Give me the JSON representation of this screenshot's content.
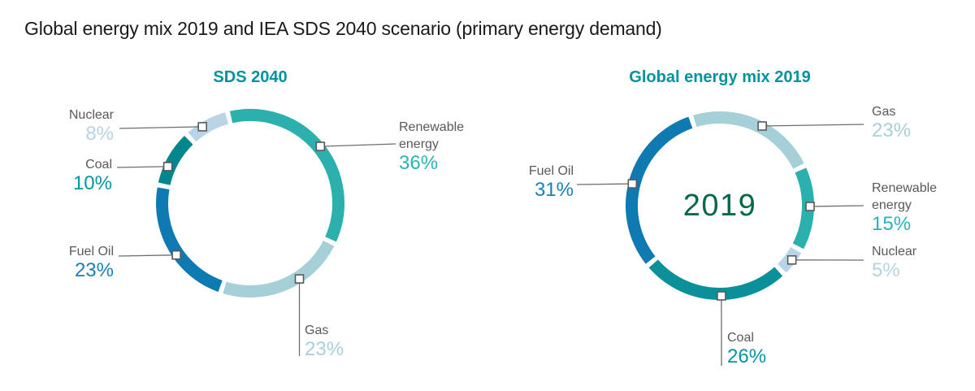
{
  "page": {
    "title": "Global energy mix 2019 and IEA SDS 2040 scenario (primary energy demand)"
  },
  "colors": {
    "background": "#ffffff",
    "title_text": "#1a1a1a",
    "label_gray": "#58595b",
    "leader_line": "#6d6e71",
    "marker_fill": "#ffffff",
    "marker_border": "#58595b",
    "chart_title_teal": "#00939e",
    "center_year_green": "#006946"
  },
  "chart_data": [
    {
      "type": "donut",
      "title": "SDS 2040",
      "center_label": "",
      "legend_position": "callout-labels",
      "units": "% of primary energy demand",
      "segments": [
        {
          "label": "Renewable energy",
          "pct_label": "36%",
          "value": 36,
          "color": "#2bb0ad",
          "pct_color": "#2eb2b8"
        },
        {
          "label": "Gas",
          "pct_label": "23%",
          "value": 23,
          "color": "#a6d0d7",
          "pct_color": "#a6d0d7"
        },
        {
          "label": "Fuel Oil",
          "pct_label": "23%",
          "value": 23,
          "color": "#0f79b1",
          "pct_color": "#1b80b8"
        },
        {
          "label": "Coal",
          "pct_label": "10%",
          "value": 10,
          "color": "#00878e",
          "pct_color": "#00969f"
        },
        {
          "label": "Nuclear",
          "pct_label": "8%",
          "value": 8,
          "color": "#b8d4e6",
          "pct_color": "#b6d3e6"
        }
      ]
    },
    {
      "type": "donut",
      "title": "Global energy mix 2019",
      "center_label": "2019",
      "legend_position": "callout-labels",
      "units": "% of primary energy demand",
      "segments": [
        {
          "label": "Gas",
          "pct_label": "23%",
          "value": 23,
          "color": "#a6d0d7",
          "pct_color": "#a6d0d7"
        },
        {
          "label": "Renewable energy",
          "pct_label": "15%",
          "value": 15,
          "color": "#2bb0ad",
          "pct_color": "#2eb2b8"
        },
        {
          "label": "Nuclear",
          "pct_label": "5%",
          "value": 5,
          "color": "#b8d4e6",
          "pct_color": "#b6d3e6"
        },
        {
          "label": "Coal",
          "pct_label": "26%",
          "value": 26,
          "color": "#0b9099",
          "pct_color": "#00969f"
        },
        {
          "label": "Fuel Oil",
          "pct_label": "31%",
          "value": 31,
          "color": "#0f79b1",
          "pct_color": "#1b80b8"
        }
      ]
    }
  ]
}
